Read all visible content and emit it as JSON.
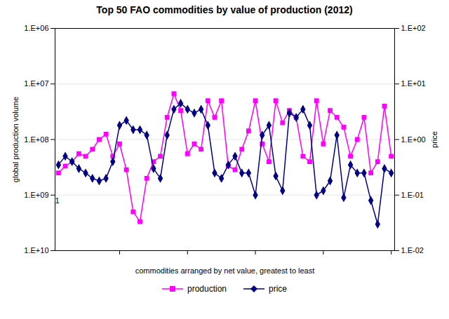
{
  "chart_data": {
    "type": "line",
    "title": "Top 50 FAO commodities by value of production (2012)",
    "xlabel": "commodities arranged by net value, greatest to least",
    "ylabel": "global production volume",
    "y2label": "price",
    "x": [
      1,
      2,
      3,
      4,
      5,
      6,
      7,
      8,
      9,
      10,
      11,
      12,
      13,
      14,
      15,
      16,
      17,
      18,
      19,
      20,
      21,
      22,
      23,
      24,
      25,
      26,
      27,
      28,
      29,
      30,
      31,
      32,
      33,
      34,
      35,
      36,
      37,
      38,
      39,
      40,
      41,
      42,
      43,
      44,
      45,
      46,
      47,
      48,
      49,
      50
    ],
    "series": [
      {
        "name": "production",
        "color": "#FF00FF",
        "marker": "square",
        "values": [
          400000000,
          300000000,
          250000000,
          180000000,
          200000000,
          150000000,
          100000000,
          80000000,
          200000000,
          120000000,
          350000000,
          2000000000,
          3000000000,
          500000000,
          250000000,
          200000000,
          40000000,
          15000000,
          30000000,
          180000000,
          120000000,
          150000000,
          20000000,
          40000000,
          20000000,
          300000000,
          350000000,
          150000000,
          70000000,
          20000000,
          120000000,
          250000000,
          20000000,
          50000000,
          30000000,
          40000000,
          200000000,
          250000000,
          20000000,
          120000000,
          30000000,
          40000000,
          60000000,
          200000000,
          100000000,
          40000000,
          400000000,
          250000000,
          25000000,
          200000000
        ]
      },
      {
        "name": "price",
        "color": "#000080",
        "marker": "diamond",
        "axis": "y2",
        "values": [
          0.35,
          0.5,
          0.4,
          0.3,
          0.25,
          0.2,
          0.18,
          0.2,
          0.4,
          1.8,
          2.2,
          1.5,
          1.5,
          1.2,
          0.3,
          0.2,
          1.2,
          3.5,
          4.5,
          3.5,
          3.0,
          3.5,
          1.8,
          0.25,
          0.2,
          0.35,
          0.5,
          0.25,
          0.25,
          0.1,
          1.2,
          1.8,
          0.22,
          0.12,
          3.0,
          2.5,
          3.5,
          1.8,
          0.1,
          0.12,
          0.18,
          1.2,
          0.09,
          0.35,
          0.25,
          0.25,
          0.08,
          0.03,
          0.3,
          0.25
        ]
      }
    ],
    "xlim": [
      0.5,
      50.5
    ],
    "xticks": [
      10,
      20,
      30,
      40,
      50
    ],
    "ylim": [
      10000000000,
      1000000
    ],
    "yticks": [
      {
        "value": 1000000,
        "label": "1.E+06"
      },
      {
        "value": 10000000,
        "label": "1.E+07"
      },
      {
        "value": 100000000,
        "label": "1.E+08"
      },
      {
        "value": 1000000000,
        "label": "1.E+09"
      },
      {
        "value": 10000000000,
        "label": "1.E+10"
      }
    ],
    "y2lim": [
      0.01,
      100
    ],
    "y2ticks": [
      {
        "value": 0.01,
        "label": "1.E-02"
      },
      {
        "value": 0.1,
        "label": "1.E-01"
      },
      {
        "value": 1,
        "label": "1.E+00"
      },
      {
        "value": 10,
        "label": "1.E+01"
      },
      {
        "value": 100,
        "label": "1.E+02"
      }
    ],
    "log": "y",
    "grid": true,
    "legend": "bottom",
    "tick_labels": "y",
    "annotations": [
      {
        "text": "1",
        "x": 0.5,
        "y": 1400000000
      }
    ]
  }
}
